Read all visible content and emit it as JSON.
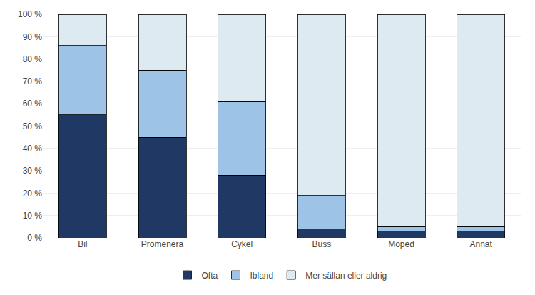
{
  "chart_data": {
    "type": "bar",
    "stacked": true,
    "categories": [
      "Bil",
      "Promenera",
      "Cykel",
      "Buss",
      "Moped",
      "Annat"
    ],
    "series": [
      {
        "name": "Ofta",
        "color": "#1F3864",
        "values": [
          55,
          45,
          28,
          4,
          3,
          3
        ]
      },
      {
        "name": "Ibland",
        "color": "#9DC3E6",
        "values": [
          31,
          30,
          33,
          15,
          2,
          2
        ]
      },
      {
        "name": "Mer sällan eller aldrig",
        "color": "#DEEAF1",
        "values": [
          14,
          25,
          39,
          81,
          95,
          95
        ]
      }
    ],
    "ylim": [
      0,
      100
    ],
    "yticks": [
      {
        "value": 0,
        "label": "0 %"
      },
      {
        "value": 10,
        "label": "10 %"
      },
      {
        "value": 20,
        "label": "20 %"
      },
      {
        "value": 30,
        "label": "30 %"
      },
      {
        "value": 40,
        "label": "40 %"
      },
      {
        "value": 50,
        "label": "50 %"
      },
      {
        "value": 60,
        "label": "60 %"
      },
      {
        "value": 70,
        "label": "70 %"
      },
      {
        "value": 80,
        "label": "80 %"
      },
      {
        "value": 90,
        "label": "90 %"
      },
      {
        "value": 100,
        "label": "100 %"
      }
    ],
    "grid": true,
    "legend": "bottom"
  }
}
